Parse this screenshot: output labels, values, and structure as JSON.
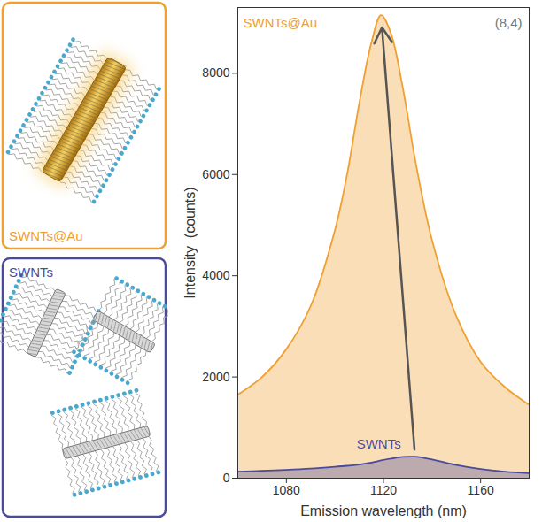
{
  "chart_data": {
    "type": "area",
    "x_label": "Emission wavelength (nm)",
    "y_label": "Intensity  (counts)",
    "x": [
      1060,
      1070,
      1080,
      1090,
      1100,
      1105,
      1110,
      1115,
      1119,
      1123,
      1128,
      1133,
      1140,
      1150,
      1160,
      1170,
      1180
    ],
    "series": [
      {
        "name": "SWNTs@Au",
        "color": "#f0a030",
        "values": [
          1650,
          2000,
          2550,
          3400,
          4900,
          6000,
          7400,
          8600,
          9150,
          8800,
          7700,
          6300,
          4700,
          3200,
          2300,
          1800,
          1450
        ]
      },
      {
        "name": "SWNTs",
        "color": "#4b4b9e",
        "values": [
          130,
          145,
          165,
          190,
          225,
          245,
          270,
          310,
          350,
          385,
          420,
          425,
          370,
          260,
          180,
          130,
          100
        ]
      }
    ],
    "xlim": [
      1060,
      1180
    ],
    "xticks": [
      1080,
      1120,
      1160
    ],
    "ylim": [
      0,
      9300
    ],
    "yticks": [
      0,
      2000,
      4000,
      6000,
      8000
    ],
    "annotations": [
      "(8,4)"
    ],
    "grid": false
  },
  "panels": [
    {
      "label": "SWNTs@Au",
      "color": "#f0a030"
    },
    {
      "label": "SWNTs",
      "color": "#4b4b9e"
    }
  ]
}
